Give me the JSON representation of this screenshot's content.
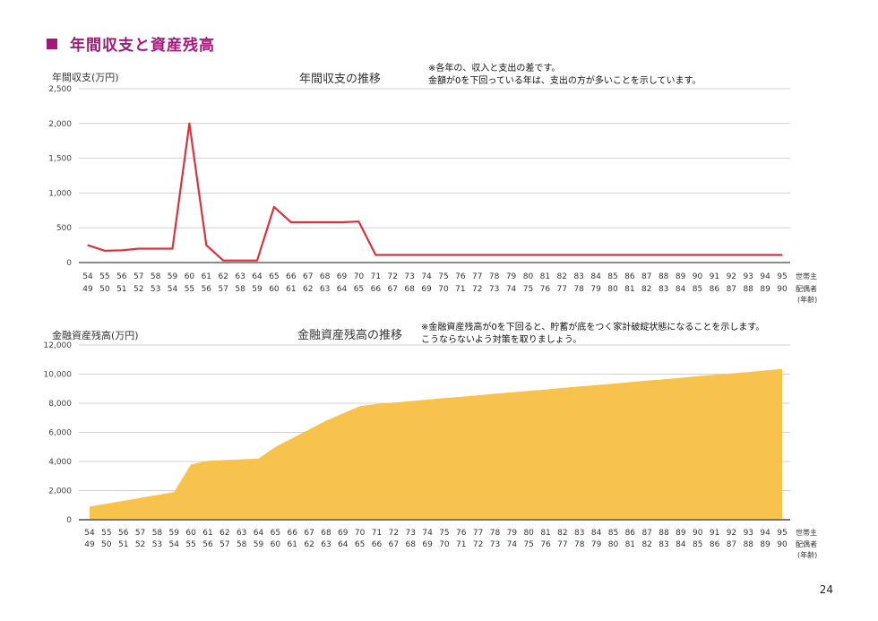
{
  "heading": "年間収支と資産残高",
  "page_number": "24",
  "chart_data": [
    {
      "type": "line",
      "title": "年間収支の推移",
      "ylabel": "年間収支(万円)",
      "note1": "※各年の、収入と支出の差です。",
      "note2": "金額が0を下回っている年は、支出の方が多いことを示しています。",
      "ylim": [
        0,
        2500
      ],
      "yticks": [
        "0",
        "500",
        "1,000",
        "1,500",
        "2,000",
        "2,500"
      ],
      "legend_row1": "世帯主",
      "legend_row2": "配偶者",
      "legend_row3": "(年齢)",
      "x_householder": [
        "54",
        "55",
        "56",
        "57",
        "58",
        "59",
        "60",
        "61",
        "62",
        "63",
        "64",
        "65",
        "66",
        "67",
        "68",
        "69",
        "70",
        "71",
        "72",
        "73",
        "74",
        "75",
        "76",
        "77",
        "78",
        "79",
        "80",
        "81",
        "82",
        "83",
        "84",
        "85",
        "86",
        "87",
        "88",
        "89",
        "90",
        "91",
        "92",
        "93",
        "94",
        "95"
      ],
      "x_spouse": [
        "49",
        "50",
        "51",
        "52",
        "53",
        "54",
        "55",
        "56",
        "57",
        "58",
        "59",
        "60",
        "61",
        "62",
        "63",
        "64",
        "65",
        "66",
        "67",
        "68",
        "69",
        "70",
        "71",
        "72",
        "73",
        "74",
        "75",
        "76",
        "77",
        "78",
        "79",
        "80",
        "81",
        "82",
        "83",
        "84",
        "85",
        "86",
        "87",
        "88",
        "89",
        "90"
      ],
      "values": [
        250,
        170,
        175,
        200,
        200,
        200,
        2000,
        250,
        30,
        30,
        30,
        800,
        580,
        580,
        580,
        580,
        590,
        110,
        110,
        110,
        110,
        110,
        110,
        110,
        110,
        110,
        110,
        110,
        110,
        110,
        110,
        110,
        110,
        110,
        110,
        110,
        110,
        110,
        110,
        110,
        110,
        110
      ],
      "color": "#d9323d"
    },
    {
      "type": "area",
      "title": "金融資産残高の推移",
      "ylabel": "金融資産残高(万円)",
      "note1": "※金融資産残高が0を下回ると、貯蓄が底をつく家計破綻状態になることを示します。",
      "note2": "こうならないよう対策を取りましょう。",
      "ylim": [
        0,
        12000
      ],
      "yticks": [
        "0",
        "2,000",
        "4,000",
        "6,000",
        "8,000",
        "10,000",
        "12,000"
      ],
      "legend_row1": "世帯主",
      "legend_row2": "配偶者",
      "legend_row3": "(年齢)",
      "x_householder": [
        "54",
        "55",
        "56",
        "57",
        "58",
        "59",
        "60",
        "61",
        "62",
        "63",
        "64",
        "65",
        "66",
        "67",
        "68",
        "69",
        "70",
        "71",
        "72",
        "73",
        "74",
        "75",
        "76",
        "77",
        "78",
        "79",
        "80",
        "81",
        "82",
        "83",
        "84",
        "85",
        "86",
        "87",
        "88",
        "89",
        "90",
        "91",
        "92",
        "93",
        "94",
        "95"
      ],
      "x_spouse": [
        "49",
        "50",
        "51",
        "52",
        "53",
        "54",
        "55",
        "56",
        "57",
        "58",
        "59",
        "60",
        "61",
        "62",
        "63",
        "64",
        "65",
        "66",
        "67",
        "68",
        "69",
        "70",
        "71",
        "72",
        "73",
        "74",
        "75",
        "76",
        "77",
        "78",
        "79",
        "80",
        "81",
        "82",
        "83",
        "84",
        "85",
        "86",
        "87",
        "88",
        "89",
        "90"
      ],
      "values": [
        900,
        1100,
        1300,
        1500,
        1700,
        1900,
        3800,
        4050,
        4100,
        4150,
        4200,
        5000,
        5600,
        6200,
        6800,
        7300,
        7800,
        7950,
        8050,
        8150,
        8250,
        8350,
        8450,
        8550,
        8650,
        8750,
        8850,
        8950,
        9050,
        9150,
        9250,
        9350,
        9450,
        9550,
        9650,
        9750,
        9850,
        9950,
        10050,
        10150,
        10250,
        10350
      ],
      "color": "#f8c34d"
    }
  ]
}
